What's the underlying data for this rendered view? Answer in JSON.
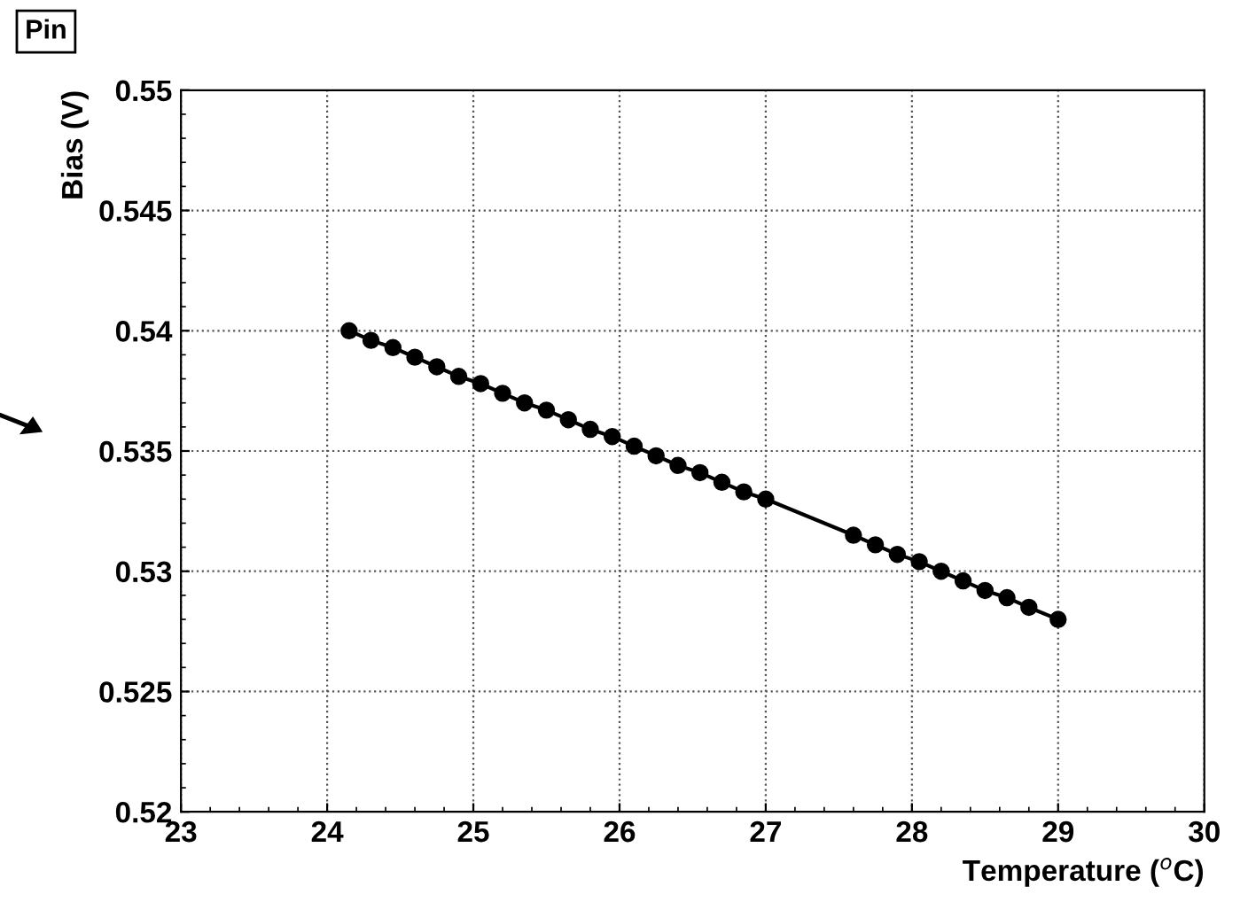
{
  "chart_data": {
    "type": "line",
    "title": "Pin",
    "xlabel": "Temperature ($^{o}$C)",
    "ylabel": "Bias (V)",
    "xlim": [
      23,
      30
    ],
    "xticks": [
      23,
      24,
      25,
      26,
      27,
      28,
      29,
      30
    ],
    "ylim": [
      0.52,
      0.55
    ],
    "yticks": [
      0.52,
      0.525,
      0.53,
      0.535,
      0.54,
      0.545,
      0.55
    ],
    "grid": true,
    "marker": "circle",
    "line_style": "solid",
    "series": [
      {
        "color": "#000000",
        "x": [
          24.15,
          24.3,
          24.45,
          24.6,
          24.75,
          24.9,
          25.05,
          25.2,
          25.35,
          25.5,
          25.65,
          25.8,
          25.95,
          26.1,
          26.25,
          26.4,
          26.55,
          26.7,
          26.85,
          27.0,
          27.6,
          27.75,
          27.9,
          28.05,
          28.2,
          28.35,
          28.5,
          28.65,
          28.8,
          29.0
        ],
        "values": [
          0.54,
          0.5396,
          0.5393,
          0.5389,
          0.5385,
          0.5381,
          0.5378,
          0.5374,
          0.537,
          0.5367,
          0.5363,
          0.5359,
          0.5356,
          0.5352,
          0.5348,
          0.5344,
          0.5341,
          0.5337,
          0.5333,
          0.533,
          0.5315,
          0.5311,
          0.5307,
          0.5304,
          0.53,
          0.5296,
          0.5292,
          0.5289,
          0.5285,
          0.528
        ]
      }
    ]
  }
}
